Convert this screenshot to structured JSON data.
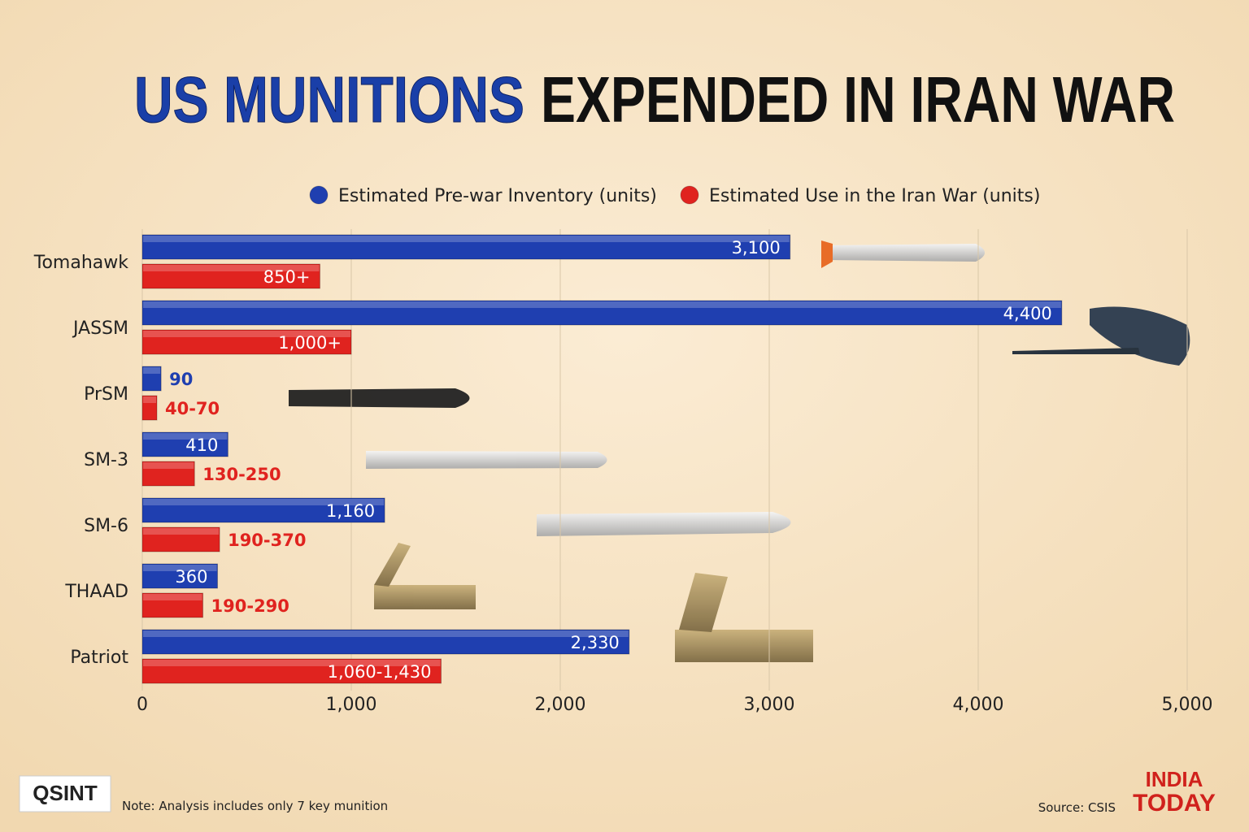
{
  "chart_data": {
    "type": "bar",
    "orientation": "horizontal",
    "title": [
      "US MUNITIONS",
      "EXPENDED IN IRAN WAR"
    ],
    "title_colors": [
      "#1a3fa8",
      "#111111"
    ],
    "categories": [
      "Tomahawk",
      "JASSM",
      "PrSM",
      "SM-3",
      "SM-6",
      "THAAD",
      "Patriot"
    ],
    "series": [
      {
        "name": "Estimated Pre-war Inventory (units)",
        "color": "#1f3fb0",
        "values": [
          3100,
          4400,
          90,
          410,
          1160,
          360,
          2330
        ],
        "value_labels": [
          "3,100",
          "4,400",
          "90",
          "410",
          "1,160",
          "360",
          "2,330"
        ]
      },
      {
        "name": "Estimated Use in the Iran War (units)",
        "color": "#e0231f",
        "values": [
          850,
          1000,
          70,
          250,
          370,
          290,
          1430
        ],
        "value_labels": [
          "850+",
          "1,000+",
          "40-70",
          "130-250",
          "190-370",
          "190-290",
          "1,060-1,430"
        ]
      }
    ],
    "xlim": [
      0,
      5000
    ],
    "xticks": [
      0,
      {
        "value": 1000,
        "label": "1,000"
      },
      {
        "value": 2000,
        "label": "2,000"
      },
      {
        "value": 3000,
        "label": "3,000"
      },
      {
        "value": 4000,
        "label": "4,000"
      },
      {
        "value": 5000,
        "label": "5,000"
      }
    ],
    "grid": true,
    "legend_position": "top",
    "note": "Note: Analysis includes only 7 key munition",
    "source": "Source: CSIS",
    "logo_left": "QSINT",
    "logo_right": [
      "INDIA",
      "TODAY"
    ]
  }
}
